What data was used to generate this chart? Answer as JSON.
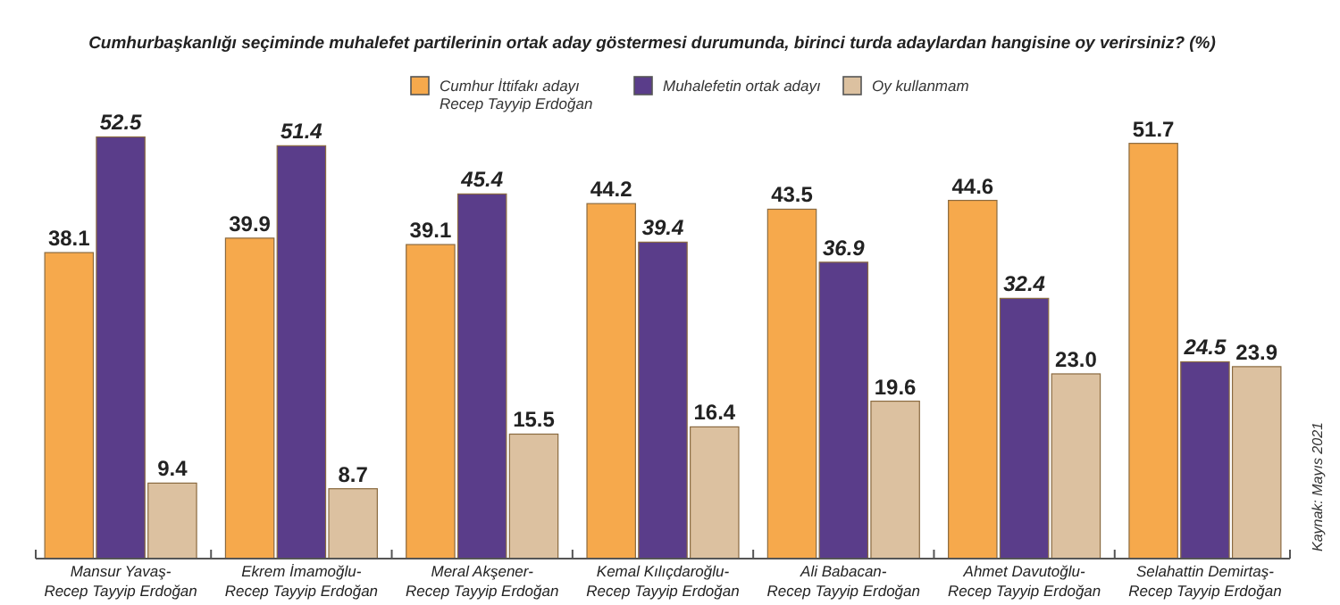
{
  "chart_data": {
    "type": "bar",
    "title": "Cumhurbaşkanlığı seçiminde muhalefet partilerinin ortak aday göstermesi durumunda, birinci turda adaylardan hangisine oy verirsiniz? (%)",
    "categories": [
      "Mansur Yavaş-\nRecep Tayyip Erdoğan",
      "Ekrem İmamoğlu-\nRecep Tayyip Erdoğan",
      "Meral Akşener-\nRecep Tayyip Erdoğan",
      "Kemal Kılıçdaroğlu-\nRecep Tayyip Erdoğan",
      "Ali Babacan-\nRecep Tayyip Erdoğan",
      "Ahmet Davutoğlu-\nRecep Tayyip Erdoğan",
      "Selahattin Demirtaş-\nRecep Tayyip Erdoğan"
    ],
    "series": [
      {
        "name": "Cumhur İttifakı adayı\nRecep Tayyip Erdoğan",
        "color": "#f6a94c",
        "values": [
          38.1,
          39.9,
          39.1,
          44.2,
          43.5,
          44.6,
          51.7
        ],
        "value_labels": [
          "38.1",
          "39.9",
          "39.1",
          "44.2",
          "43.5",
          "44.6",
          "51.7"
        ]
      },
      {
        "name": "Muhalefetin ortak adayı",
        "color": "#5a3d8a",
        "values": [
          52.5,
          51.4,
          45.4,
          39.4,
          36.9,
          32.4,
          24.5
        ],
        "value_labels": [
          "52.5",
          "51.4",
          "45.4",
          "39.4",
          "36.9",
          "32.4",
          "24.5"
        ]
      },
      {
        "name": "Oy kullanmam",
        "color": "#dcc1a0",
        "values": [
          9.4,
          8.7,
          15.5,
          16.4,
          19.6,
          23.0,
          23.9
        ],
        "value_labels": [
          "9.4",
          "8.7",
          "15.5",
          "16.4",
          "19.6",
          "23.0",
          "23.9"
        ]
      }
    ],
    "legend": "top",
    "annotations": [
      "Kaynak: Mayıs 2021"
    ]
  }
}
